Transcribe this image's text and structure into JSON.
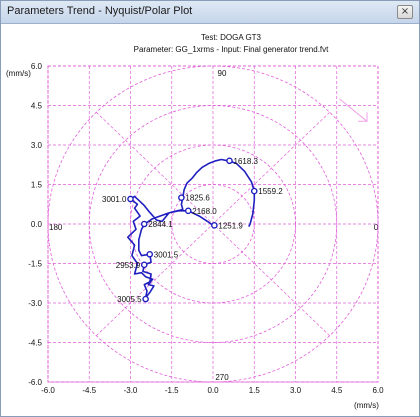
{
  "window": {
    "title": "Parameters Trend - Nyquist/Polar Plot",
    "close_label": "×"
  },
  "chart_data": {
    "type": "line",
    "title": "Test: DOGA GT3",
    "subtitle": "Parameter: GG_1xrms - Input: Final generator trend.fvt",
    "xlabel": "(mm/s)",
    "ylabel": "(mm/s)",
    "xlim": [
      -6.0,
      6.0
    ],
    "ylim": [
      -6.0,
      6.0
    ],
    "x_ticks": [
      "-6.0",
      "-4.5",
      "-3.0",
      "-1.5",
      "0.0",
      "1.5",
      "3.0",
      "4.5",
      "6.0"
    ],
    "y_ticks": [
      "6.0",
      "4.5",
      "3.0",
      "1.5",
      "0.0",
      "-1.5",
      "-3.0",
      "-4.5",
      "-6.0"
    ],
    "polar_angle_labels": {
      "top": "90",
      "bottom": "270",
      "left": "180",
      "right": "0"
    },
    "polar_rings": [
      1.5,
      3.0,
      4.5,
      6.0
    ],
    "grid": true,
    "line_color": "#1f1fbf",
    "grid_color": "#e060d8",
    "arrow_color": "#f0a0e8",
    "series": [
      {
        "points": [
          [
            0.0,
            -0.05
          ],
          [
            -0.2,
            0.1
          ],
          [
            -0.5,
            0.3
          ],
          [
            -0.9,
            0.5
          ],
          [
            -1.25,
            0.5
          ],
          [
            -1.6,
            0.42
          ],
          [
            -2.2,
            0.2
          ],
          [
            -2.48,
            0.0
          ],
          [
            -2.6,
            -0.2
          ],
          [
            -2.7,
            -0.6
          ],
          [
            -2.7,
            -1.0
          ],
          [
            -2.6,
            -1.2
          ],
          [
            -2.3,
            -1.15
          ],
          [
            -2.25,
            -1.45
          ],
          [
            -2.5,
            -1.55
          ],
          [
            -2.55,
            -1.8
          ],
          [
            -2.25,
            -1.9
          ],
          [
            -2.3,
            -2.2
          ],
          [
            -2.5,
            -2.3
          ],
          [
            -2.4,
            -2.55
          ],
          [
            -2.45,
            -2.8
          ],
          [
            -2.3,
            -2.6
          ],
          [
            -2.15,
            -2.35
          ],
          [
            -2.35,
            -2.3
          ],
          [
            -2.2,
            -2.1
          ],
          [
            -2.45,
            -2.0
          ],
          [
            -2.6,
            -1.85
          ],
          [
            -2.85,
            -1.9
          ],
          [
            -2.75,
            -1.5
          ],
          [
            -2.95,
            -1.2
          ],
          [
            -2.85,
            -0.8
          ],
          [
            -3.1,
            -0.5
          ],
          [
            -2.8,
            -0.2
          ],
          [
            -2.9,
            0.1
          ],
          [
            -2.65,
            0.3
          ],
          [
            -2.85,
            0.6
          ],
          [
            -2.75,
            0.75
          ],
          [
            -3.0,
            0.95
          ],
          [
            -2.85,
            1.05
          ],
          [
            -2.7,
            0.9
          ],
          [
            -2.5,
            0.7
          ],
          [
            -2.35,
            0.5
          ],
          [
            -2.05,
            0.15
          ],
          [
            -1.85,
            0.1
          ],
          [
            -1.6,
            0.42
          ],
          [
            -1.3,
            0.5
          ],
          [
            -1.1,
            0.55
          ],
          [
            -1.15,
            0.75
          ],
          [
            -1.1,
            1.0
          ],
          [
            -1.05,
            1.3
          ],
          [
            -0.95,
            1.55
          ],
          [
            -0.75,
            1.75
          ],
          [
            -0.6,
            1.95
          ],
          [
            -0.4,
            2.15
          ],
          [
            -0.15,
            2.3
          ],
          [
            0.1,
            2.4
          ],
          [
            0.3,
            2.45
          ],
          [
            0.55,
            2.4
          ],
          [
            0.85,
            2.3
          ],
          [
            1.15,
            2.0
          ],
          [
            1.4,
            1.6
          ],
          [
            1.5,
            1.25
          ],
          [
            1.5,
            0.9
          ],
          [
            1.45,
            0.4
          ],
          [
            1.35,
            0.0
          ],
          [
            1.3,
            -0.1
          ]
        ],
        "markers": [
          {
            "x": 0.6,
            "y": 2.4,
            "label": "1618.3",
            "anchor": "right"
          },
          {
            "x": 1.5,
            "y": 1.25,
            "label": "1559.2",
            "anchor": "right"
          },
          {
            "x": -1.15,
            "y": 1.0,
            "label": "1825.6",
            "anchor": "right"
          },
          {
            "x": -0.9,
            "y": 0.5,
            "label": "2168.0",
            "anchor": "right"
          },
          {
            "x": -3.0,
            "y": 0.95,
            "label": "3001.0",
            "anchor": "left"
          },
          {
            "x": -2.5,
            "y": 0.0,
            "label": "2844.1",
            "anchor": "right"
          },
          {
            "x": 0.05,
            "y": -0.05,
            "label": "1251.9",
            "anchor": "right"
          },
          {
            "x": -2.3,
            "y": -1.15,
            "label": "3001.5",
            "anchor": "right"
          },
          {
            "x": -2.5,
            "y": -1.55,
            "label": "2953.9",
            "anchor": "left"
          },
          {
            "x": -2.45,
            "y": -2.85,
            "label": "3005.5",
            "anchor": "left"
          }
        ]
      }
    ]
  }
}
